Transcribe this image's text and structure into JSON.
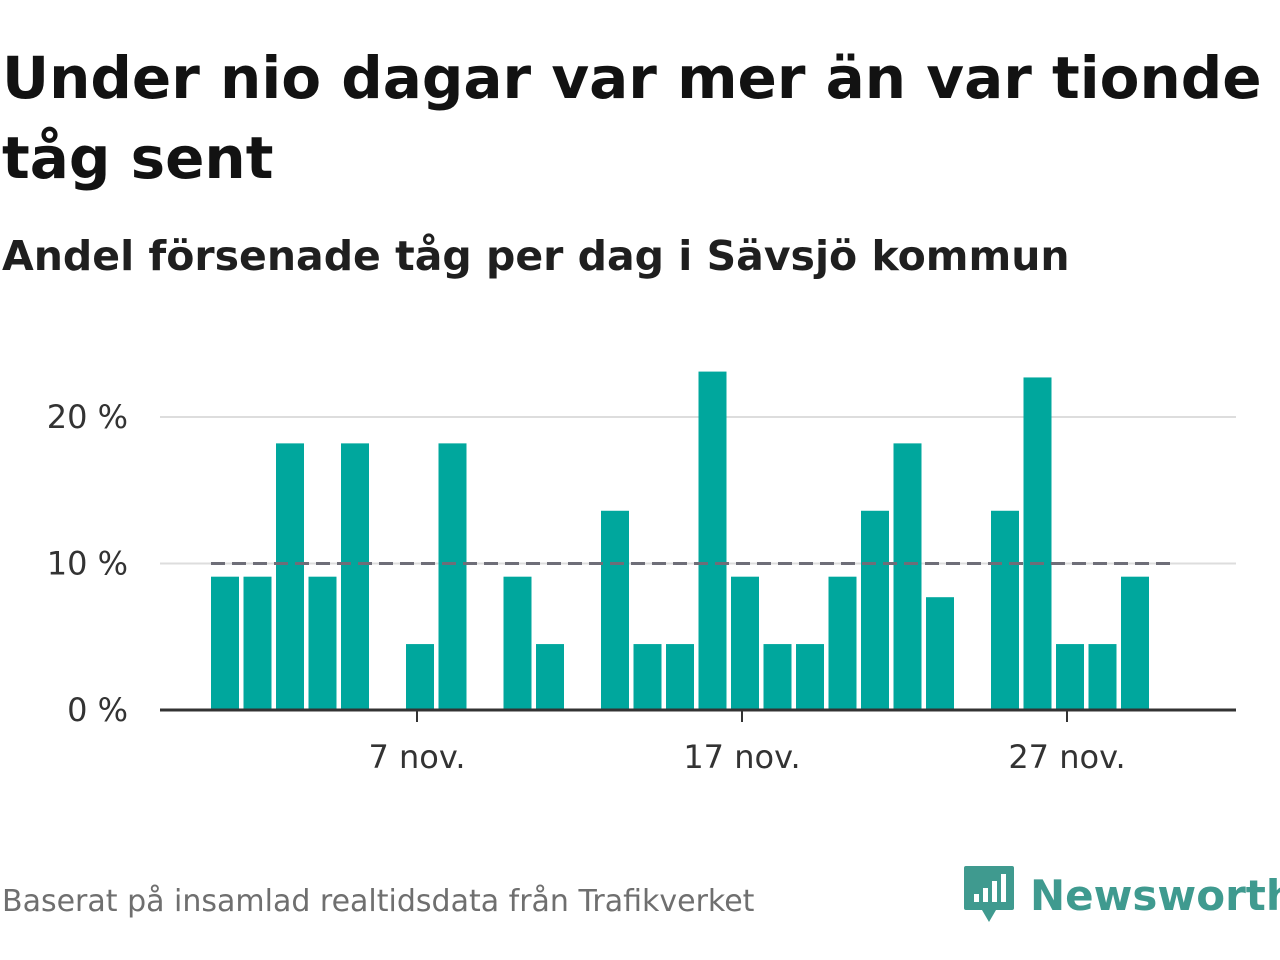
{
  "title": "Under nio dagar var mer än var tionde tåg sent",
  "subtitle": "Andel försenade tåg per dag i Sävsjö kommun",
  "source": "Baserat på insamlad realtidsdata från Trafikverket",
  "brand": "Newsworthy",
  "colors": {
    "bar": "#00a79d",
    "threshold": "#6e6e78",
    "grid": "#dddddd",
    "axis": "#333333",
    "brand": "#3f9a8f"
  },
  "chart_data": {
    "type": "bar",
    "x": [
      "1 nov.",
      "2 nov.",
      "3 nov.",
      "4 nov.",
      "5 nov.",
      "6 nov.",
      "7 nov.",
      "8 nov.",
      "9 nov.",
      "10 nov.",
      "11 nov.",
      "12 nov.",
      "13 nov.",
      "14 nov.",
      "15 nov.",
      "16 nov.",
      "17 nov.",
      "18 nov.",
      "19 nov.",
      "20 nov.",
      "21 nov.",
      "22 nov.",
      "23 nov.",
      "24 nov.",
      "25 nov.",
      "26 nov.",
      "27 nov.",
      "28 nov.",
      "29 nov.",
      "30 nov."
    ],
    "values": [
      9.1,
      9.1,
      18.2,
      9.1,
      18.2,
      0,
      4.5,
      18.2,
      0,
      9.1,
      4.5,
      0,
      13.6,
      4.5,
      4.5,
      23.1,
      9.1,
      4.5,
      4.5,
      9.1,
      13.6,
      18.2,
      7.7,
      0,
      13.6,
      22.7,
      4.5,
      4.5,
      9.1,
      0
    ],
    "unit": "%",
    "ylim": [
      0,
      25
    ],
    "yticks": [
      0,
      10,
      20
    ],
    "ytick_labels": [
      "0 %",
      "10 %",
      "20 %"
    ],
    "xticks": [
      "7 nov.",
      "17 nov.",
      "27 nov."
    ],
    "threshold": 10,
    "grid": true
  }
}
